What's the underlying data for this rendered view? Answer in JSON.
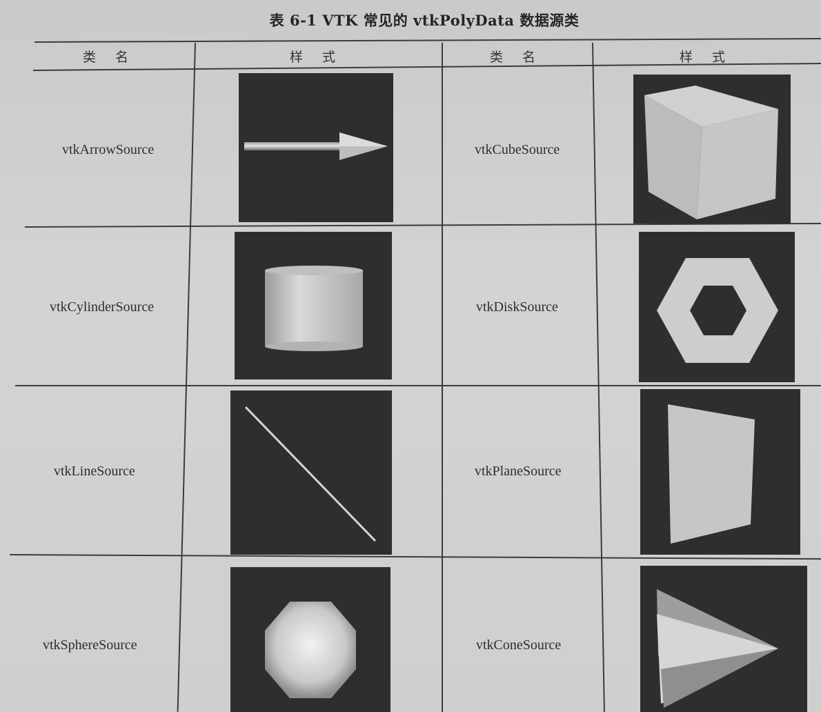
{
  "caption": "表 6-1   VTK 常见的 vtkPolyData 数据源类",
  "headers": {
    "left_name": "类名",
    "left_style": "样式",
    "right_name": "类名",
    "right_style": "样式"
  },
  "rows": [
    {
      "left_name": "vtkArrowSource",
      "left_icon": "arrow-icon",
      "right_name": "vtkCubeSource",
      "right_icon": "cube-icon"
    },
    {
      "left_name": "vtkCylinderSource",
      "left_icon": "cylinder-icon",
      "right_name": "vtkDiskSource",
      "right_icon": "disk-icon"
    },
    {
      "left_name": "vtkLineSource",
      "left_icon": "line-icon",
      "right_name": "vtkPlaneSource",
      "right_icon": "plane-icon"
    },
    {
      "left_name": "vtkSphereSource",
      "left_icon": "sphere-icon",
      "right_name": "vtkConeSource",
      "right_icon": "cone-icon"
    }
  ],
  "colors": {
    "ink": "#2d2d2d",
    "thumb_bg": "#2e2e2e",
    "shape": "#c8c8c8"
  }
}
